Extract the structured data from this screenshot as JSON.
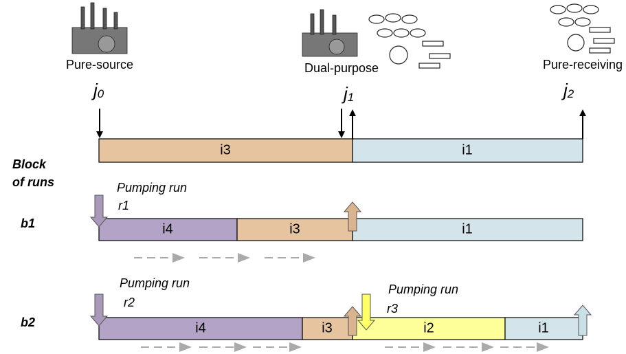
{
  "nodes": [
    {
      "label": "Pure-source",
      "symbol": "j",
      "subscript": "0"
    },
    {
      "label": "Dual-purpose",
      "symbol": "j",
      "subscript": "1"
    },
    {
      "label": "Pure-receiving",
      "symbol": "j",
      "subscript": "2"
    }
  ],
  "pipeline": {
    "segments": [
      "i3",
      "i1"
    ]
  },
  "blocks_title": [
    "Block",
    "of runs"
  ],
  "blocks": [
    {
      "label": "b1",
      "runs": [
        {
          "title": "Pumping run",
          "id": "r1"
        }
      ],
      "segments": [
        "i4",
        "i3",
        "i1"
      ]
    },
    {
      "label": "b2",
      "runs": [
        {
          "title": "Pumping run",
          "id": "r2"
        },
        {
          "title": "Pumping run",
          "id": "r3"
        }
      ],
      "segments": [
        "i4",
        "i3",
        "i2",
        "i1"
      ]
    }
  ]
}
